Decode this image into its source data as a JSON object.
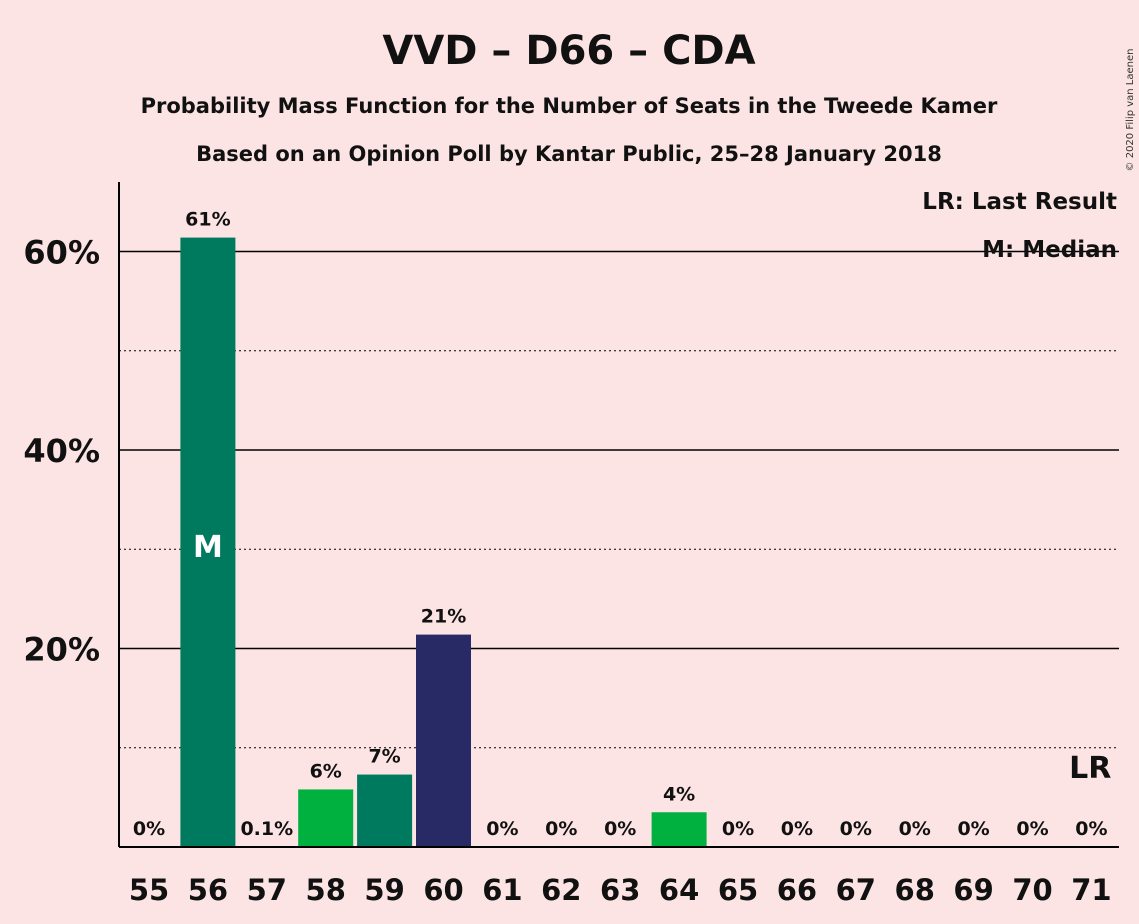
{
  "chart_data": {
    "type": "bar",
    "title": "VVD – D66 – CDA",
    "subtitle": "Probability Mass Function for the Number of Seats in the Tweede Kamer",
    "subtitle2": "Based on an Opinion Poll by Kantar Public, 25–28 January 2018",
    "copyright": "© 2020 Filip van Laenen",
    "ylim": [
      0,
      67
    ],
    "yticks": [
      {
        "value": 20,
        "label": "20%"
      },
      {
        "value": 40,
        "label": "40%"
      },
      {
        "value": 60,
        "label": "60%"
      }
    ],
    "minor_grid": [
      10,
      30,
      50
    ],
    "legend": {
      "last_result": "LR: Last Result",
      "median": "M: Median"
    },
    "median_marker": "M",
    "median_seat": "56",
    "last_result_marker": "LR",
    "last_result_seat": "71",
    "colors": {
      "background": "#fce4e4",
      "vvd": "#007a5e",
      "d66": "#00b140",
      "cda": "#272a64",
      "axis": "#000000"
    },
    "categories": [
      "55",
      "56",
      "57",
      "58",
      "59",
      "60",
      "61",
      "62",
      "63",
      "64",
      "65",
      "66",
      "67",
      "68",
      "69",
      "70",
      "71"
    ],
    "values": [
      0,
      61.4,
      0.1,
      5.8,
      7.3,
      21.4,
      0,
      0,
      0,
      3.5,
      0,
      0,
      0,
      0,
      0,
      0,
      0
    ],
    "labels": [
      "0%",
      "61%",
      "0.1%",
      "6%",
      "7%",
      "21%",
      "0%",
      "0%",
      "0%",
      "4%",
      "0%",
      "0%",
      "0%",
      "0%",
      "0%",
      "0%",
      "0%"
    ],
    "bar_colors": [
      "#007a5e",
      "#007a5e",
      "#00b140",
      "#00b140",
      "#007a5e",
      "#272a64",
      "#007a5e",
      "#007a5e",
      "#007a5e",
      "#00b140",
      "#007a5e",
      "#007a5e",
      "#007a5e",
      "#007a5e",
      "#007a5e",
      "#007a5e",
      "#007a5e"
    ]
  }
}
